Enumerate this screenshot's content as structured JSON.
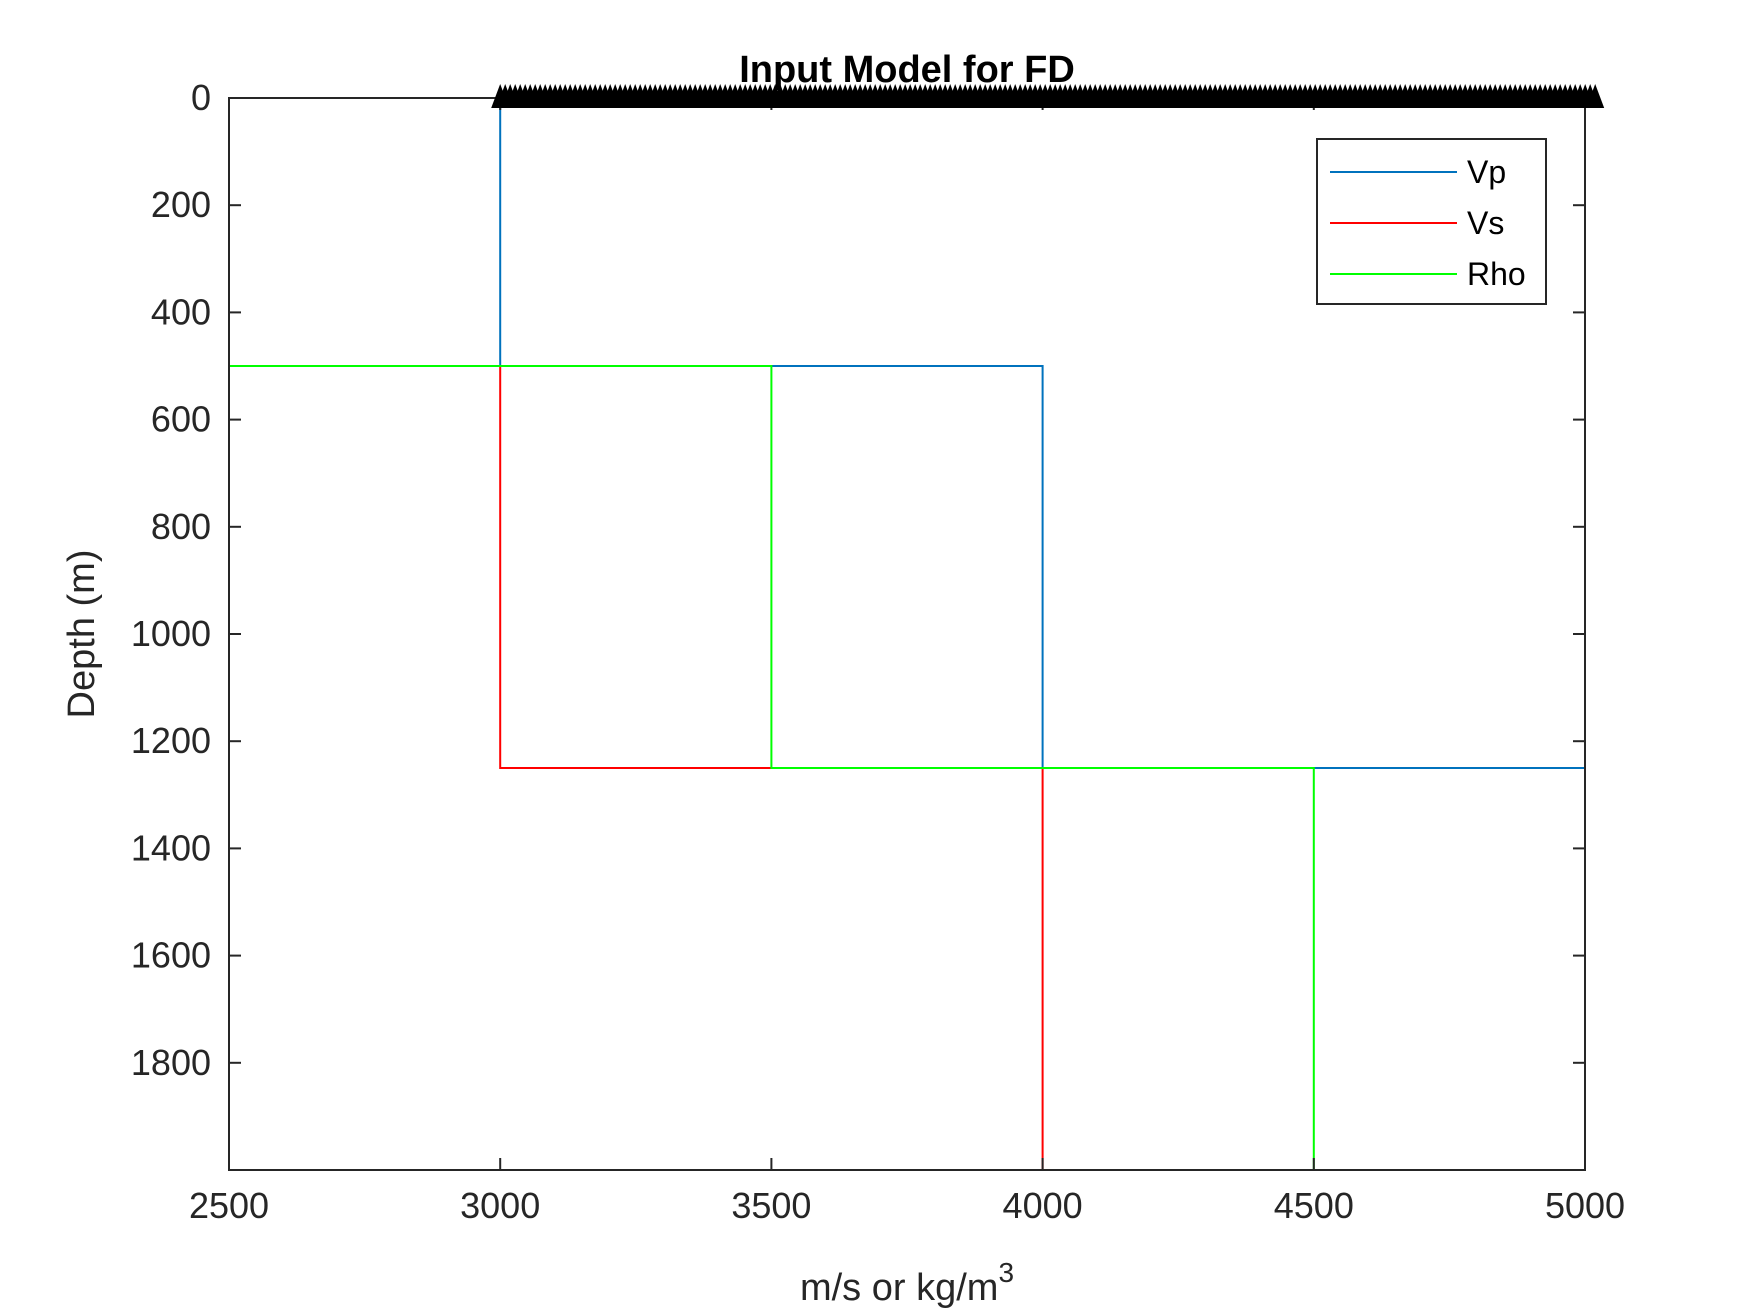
{
  "chart_data": {
    "type": "line",
    "title": "Input Model for FD",
    "xlabel": "m/s or kg/m",
    "xlabel_superscript": "3",
    "ylabel": "Depth (m)",
    "xlim": [
      2500,
      5000
    ],
    "ylim": [
      0,
      2000
    ],
    "y_reversed": true,
    "x_ticks": [
      2500,
      3000,
      3500,
      4000,
      4500,
      5000
    ],
    "y_ticks": [
      0,
      200,
      400,
      600,
      800,
      1000,
      1200,
      1400,
      1600,
      1800
    ],
    "grid": false,
    "legend_position": "top-right",
    "series": [
      {
        "name": "Vp",
        "color": "#0072BD",
        "points": [
          [
            3000,
            0
          ],
          [
            3000,
            500
          ],
          [
            4000,
            500
          ],
          [
            4000,
            1250
          ],
          [
            5000,
            1250
          ],
          [
            5000,
            2000
          ]
        ]
      },
      {
        "name": "Vs",
        "color": "#FF0000",
        "points": [
          [
            2500,
            0
          ],
          [
            2500,
            500
          ],
          [
            3000,
            500
          ],
          [
            3000,
            1250
          ],
          [
            4000,
            1250
          ],
          [
            4000,
            2000
          ]
        ]
      },
      {
        "name": "Rho",
        "color": "#00FF00",
        "points": [
          [
            2500,
            0
          ],
          [
            2500,
            500
          ],
          [
            3500,
            500
          ],
          [
            3500,
            1250
          ],
          [
            4500,
            1250
          ],
          [
            4500,
            2000
          ]
        ]
      }
    ],
    "receivers": {
      "marker": "triangle",
      "color": "#000000",
      "x_start": 3000,
      "x_end": 5025,
      "y": 0
    }
  }
}
